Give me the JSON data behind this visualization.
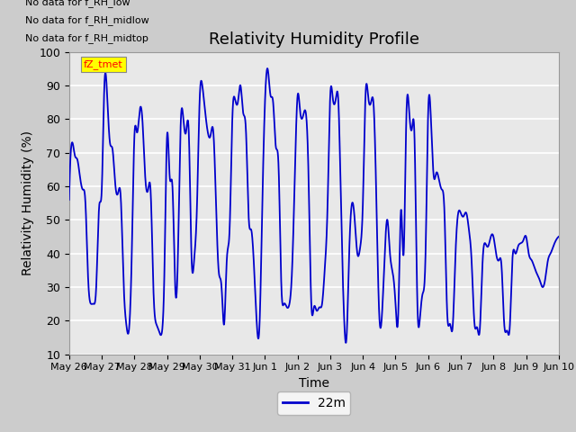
{
  "title": "Relativity Humidity Profile",
  "xlabel": "Time",
  "ylabel": "Relativity Humidity (%)",
  "ylim": [
    10,
    100
  ],
  "yticks": [
    10,
    20,
    30,
    40,
    50,
    60,
    70,
    80,
    90,
    100
  ],
  "line_color": "#0000cc",
  "line_width": 1.5,
  "legend_label": "22m",
  "no_data_texts": [
    "No data for f_RH_low",
    "No data for f_RH_midlow",
    "No data for f_RH_midtop"
  ],
  "tmet_label": "fZ_tmet",
  "x_tick_labels": [
    "May 26",
    "May 27",
    "May 28",
    "May 29",
    "May 30",
    "May 31",
    "Jun 1",
    "Jun 2",
    "Jun 3",
    "Jun 4",
    "Jun 5",
    "Jun 6",
    "Jun 7",
    "Jun 8",
    "Jun 9",
    "Jun 10"
  ],
  "x_tick_positions": [
    0,
    1,
    2,
    3,
    4,
    5,
    6,
    7,
    8,
    9,
    10,
    11,
    12,
    13,
    14,
    15
  ],
  "data_x": [
    0.0,
    0.1,
    0.18,
    0.25,
    0.33,
    0.42,
    0.5,
    0.58,
    0.67,
    0.75,
    0.83,
    0.92,
    1.0,
    1.08,
    1.17,
    1.25,
    1.33,
    1.42,
    1.5,
    1.58,
    1.67,
    1.75,
    1.83,
    1.92,
    2.0,
    2.08,
    2.17,
    2.25,
    2.33,
    2.42,
    2.5,
    2.58,
    2.67,
    2.75,
    2.83,
    2.92,
    3.0,
    3.08,
    3.17,
    3.25,
    3.33,
    3.42,
    3.5,
    3.58,
    3.67,
    3.75,
    3.83,
    3.92,
    4.0,
    4.08,
    4.17,
    4.25,
    4.33,
    4.42,
    4.5,
    4.58,
    4.67,
    4.75,
    4.83,
    4.92,
    5.0,
    5.08,
    5.17,
    5.25,
    5.33,
    5.42,
    5.5,
    5.58,
    5.67,
    5.75,
    5.83,
    5.92,
    6.0,
    6.08,
    6.17,
    6.25,
    6.33,
    6.42,
    6.5,
    6.58,
    6.67,
    6.75,
    6.83,
    6.92,
    7.0,
    7.08,
    7.17,
    7.25,
    7.33,
    7.42,
    7.5,
    7.58,
    7.67,
    7.75,
    7.83,
    7.92,
    8.0,
    8.08,
    8.17,
    8.25,
    8.33,
    8.42,
    8.5,
    8.58,
    8.67,
    8.75,
    8.83,
    8.92,
    9.0,
    9.08,
    9.17,
    9.25,
    9.33,
    9.42,
    9.5,
    9.58,
    9.67,
    9.75,
    9.83,
    9.92,
    10.0,
    10.08,
    10.17,
    10.25,
    10.33,
    10.42,
    10.5,
    10.58,
    10.67,
    10.75,
    10.83,
    10.92,
    11.0,
    11.08,
    11.17,
    11.25,
    11.33,
    11.42,
    11.5,
    11.58,
    11.67,
    11.75,
    11.83,
    11.92,
    12.0,
    12.08,
    12.17,
    12.25,
    12.33,
    12.42,
    12.5,
    12.58,
    12.67,
    12.75,
    12.83,
    12.92,
    13.0,
    13.08,
    13.17,
    13.25,
    13.33,
    13.42,
    13.5,
    13.58,
    13.67,
    13.75,
    13.83,
    13.92,
    14.0,
    14.08,
    14.17,
    14.25,
    14.33,
    14.42,
    14.5,
    14.58,
    14.67,
    14.75,
    14.83,
    14.92,
    15.0
  ],
  "data_y": [
    56,
    73,
    69,
    68,
    63,
    59,
    55,
    33,
    25,
    25,
    30,
    54,
    59,
    90,
    86,
    73,
    71,
    60,
    58,
    57,
    31,
    19,
    17,
    40,
    75,
    76,
    83,
    79,
    63,
    59,
    58,
    30,
    19,
    17,
    16,
    35,
    75,
    63,
    59,
    30,
    38,
    79,
    80,
    76,
    75,
    39,
    38,
    55,
    86,
    90,
    82,
    76,
    75,
    76,
    55,
    35,
    30,
    19,
    38,
    48,
    80,
    86,
    85,
    90,
    82,
    76,
    51,
    47,
    35,
    19,
    18,
    55,
    85,
    95,
    87,
    85,
    72,
    65,
    31,
    25,
    24,
    25,
    35,
    65,
    87,
    82,
    81,
    82,
    65,
    25,
    24,
    23,
    24,
    25,
    35,
    55,
    87,
    86,
    86,
    85,
    54,
    22,
    15,
    40,
    55,
    50,
    40,
    42,
    55,
    87,
    86,
    85,
    84,
    53,
    22,
    21,
    40,
    50,
    40,
    34,
    25,
    21,
    53,
    40,
    80,
    82,
    77,
    75,
    25,
    21,
    28,
    40,
    82,
    81,
    63,
    64,
    62,
    59,
    52,
    23,
    19,
    18,
    38,
    52,
    52,
    51,
    52,
    47,
    38,
    19,
    18,
    17,
    38,
    43,
    42,
    45,
    45,
    40,
    38,
    36,
    19,
    17,
    18,
    38,
    40,
    42,
    43,
    44,
    45,
    40,
    38,
    36,
    34,
    32,
    30,
    32,
    38,
    40,
    42,
    44,
    45
  ]
}
